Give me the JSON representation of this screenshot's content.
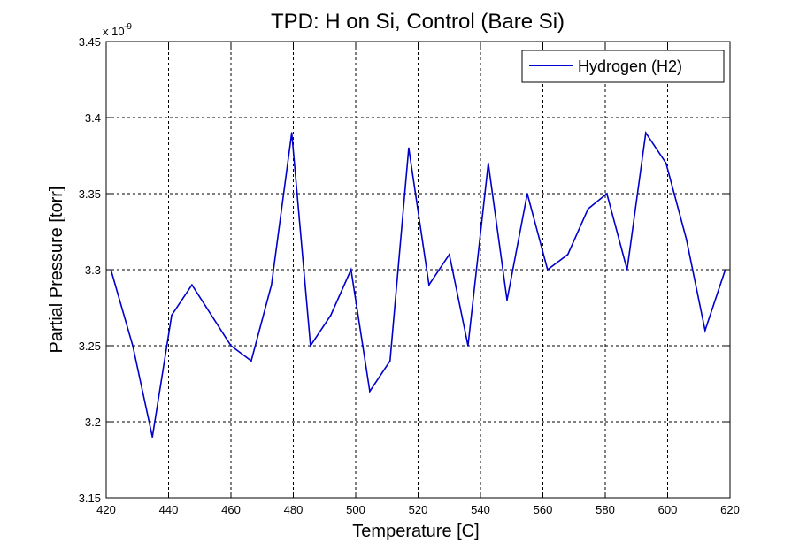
{
  "chart_data": {
    "type": "line",
    "title": "TPD: H on Si, Control (Bare Si)",
    "xlabel": "Temperature [C]",
    "ylabel": "Partial Pressure [torr]",
    "xlim": [
      420,
      620
    ],
    "ylim": [
      3.15,
      3.45
    ],
    "x_ticks": [
      420,
      440,
      460,
      480,
      500,
      520,
      540,
      560,
      580,
      600,
      620
    ],
    "y_ticks": [
      3.15,
      3.2,
      3.25,
      3.3,
      3.35,
      3.4,
      3.45
    ],
    "x_tick_labels": [
      "420",
      "440",
      "460",
      "480",
      "500",
      "520",
      "540",
      "560",
      "580",
      "600",
      "620"
    ],
    "y_tick_labels": [
      "3.15",
      "3.2",
      "3.25",
      "3.3",
      "3.35",
      "3.4",
      "3.45"
    ],
    "y_exponent_base": "x 10",
    "y_exponent_power": "-9",
    "grid": true,
    "legend_position": "top-right",
    "series": [
      {
        "name": "Hydrogen (H2)",
        "color": "#0000cc",
        "x": [
          421.5,
          428.5,
          434.8,
          441.0,
          447.5,
          460.0,
          466.5,
          473.0,
          479.5,
          485.5,
          492.0,
          498.5,
          504.5,
          511.0,
          517.0,
          523.5,
          530.0,
          536.0,
          542.5,
          548.5,
          555.0,
          561.5,
          568.0,
          574.5,
          580.5,
          587.0,
          593.0,
          599.5,
          606.0,
          612.0,
          618.5
        ],
        "y": [
          3.3,
          3.25,
          3.19,
          3.27,
          3.29,
          3.25,
          3.24,
          3.29,
          3.39,
          3.25,
          3.27,
          3.3,
          3.22,
          3.24,
          3.38,
          3.29,
          3.31,
          3.25,
          3.37,
          3.28,
          3.35,
          3.3,
          3.31,
          3.34,
          3.35,
          3.3,
          3.39,
          3.37,
          3.32,
          3.26,
          3.3
        ]
      }
    ]
  }
}
